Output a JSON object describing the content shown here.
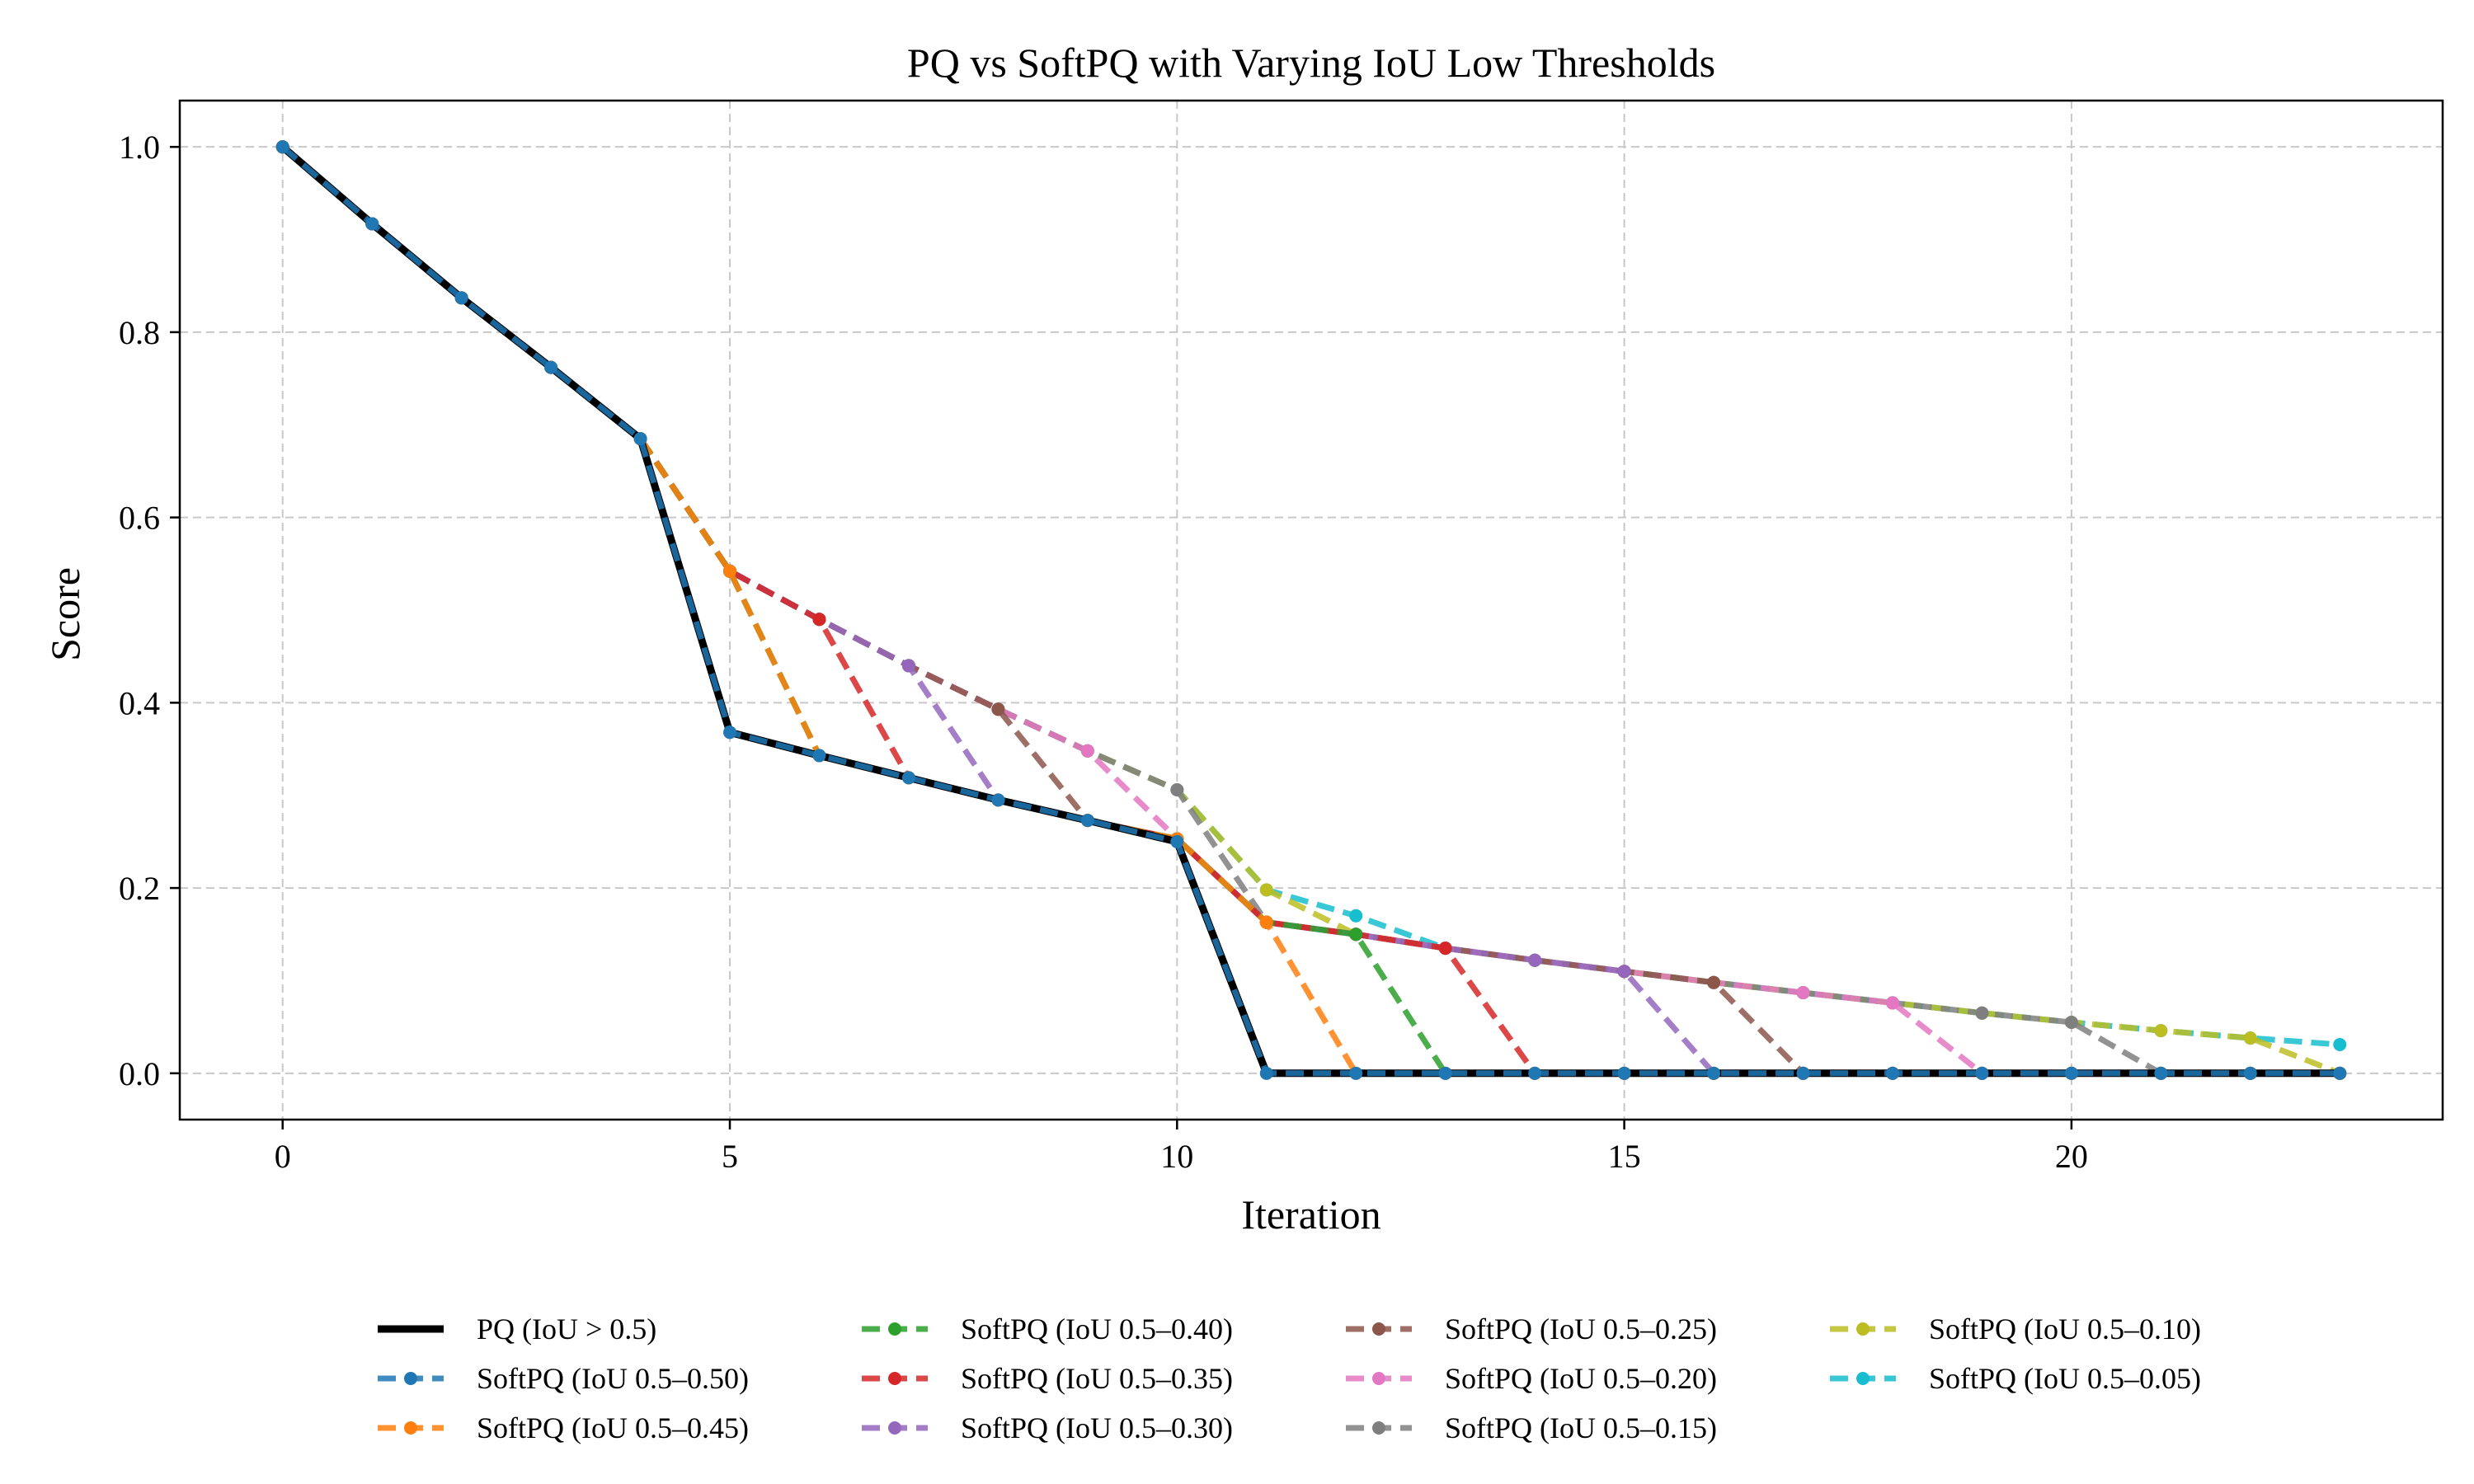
{
  "chart_data": {
    "type": "line",
    "title": "PQ vs SoftPQ with Varying IoU Low Thresholds",
    "xlabel": "Iteration",
    "ylabel": "Score",
    "xlim": [
      -1.15,
      24.15
    ],
    "ylim": [
      -0.05,
      1.05
    ],
    "xticks": [
      0,
      5,
      10,
      15,
      20
    ],
    "yticks": [
      0.0,
      0.2,
      0.4,
      0.6,
      0.8,
      1.0
    ],
    "grid": true,
    "legend_position": "bottom-center",
    "x": [
      0,
      1,
      2,
      3,
      4,
      5,
      6,
      7,
      8,
      9,
      10,
      11,
      12,
      13,
      14,
      15,
      16,
      17,
      18,
      19,
      20,
      21,
      22,
      23
    ],
    "series": [
      {
        "name": "SoftPQ (IoU 0.5–0.05)",
        "color": "#17becf",
        "style": "dashed",
        "marker": true,
        "values": [
          1.0,
          0.917,
          0.837,
          0.762,
          0.685,
          0.542,
          0.49,
          0.44,
          0.393,
          0.348,
          0.306,
          0.198,
          0.17,
          0.135,
          0.122,
          0.11,
          0.098,
          0.087,
          0.076,
          0.065,
          0.055,
          0.046,
          0.038,
          0.031
        ]
      },
      {
        "name": "SoftPQ (IoU 0.5–0.10)",
        "color": "#bcbd22",
        "style": "dashed",
        "marker": true,
        "values": [
          1.0,
          0.917,
          0.837,
          0.762,
          0.685,
          0.542,
          0.49,
          0.44,
          0.393,
          0.348,
          0.306,
          0.198,
          0.15,
          0.135,
          0.122,
          0.11,
          0.098,
          0.087,
          0.076,
          0.065,
          0.055,
          0.046,
          0.038,
          0.0
        ]
      },
      {
        "name": "SoftPQ (IoU 0.5–0.15)",
        "color": "#7f7f7f",
        "style": "dashed",
        "marker": true,
        "values": [
          1.0,
          0.917,
          0.837,
          0.762,
          0.685,
          0.542,
          0.49,
          0.44,
          0.393,
          0.348,
          0.306,
          0.163,
          0.15,
          0.135,
          0.122,
          0.11,
          0.098,
          0.087,
          0.076,
          0.065,
          0.055,
          0.0,
          0.0,
          0.0
        ]
      },
      {
        "name": "SoftPQ (IoU 0.5–0.20)",
        "color": "#e377c2",
        "style": "dashed",
        "marker": true,
        "values": [
          1.0,
          0.917,
          0.837,
          0.762,
          0.685,
          0.542,
          0.49,
          0.44,
          0.393,
          0.348,
          0.253,
          0.163,
          0.15,
          0.135,
          0.122,
          0.11,
          0.098,
          0.087,
          0.076,
          0.0,
          0.0,
          0.0,
          0.0,
          0.0
        ]
      },
      {
        "name": "SoftPQ (IoU 0.5–0.25)",
        "color": "#8c564b",
        "style": "dashed",
        "marker": true,
        "values": [
          1.0,
          0.917,
          0.837,
          0.762,
          0.685,
          0.542,
          0.49,
          0.44,
          0.393,
          0.273,
          0.253,
          0.163,
          0.15,
          0.135,
          0.122,
          0.11,
          0.098,
          0.0,
          0.0,
          0.0,
          0.0,
          0.0,
          0.0,
          0.0
        ]
      },
      {
        "name": "SoftPQ (IoU 0.5–0.30)",
        "color": "#9467bd",
        "style": "dashed",
        "marker": true,
        "values": [
          1.0,
          0.917,
          0.837,
          0.762,
          0.685,
          0.542,
          0.49,
          0.44,
          0.295,
          0.273,
          0.253,
          0.163,
          0.15,
          0.135,
          0.122,
          0.11,
          0.0,
          0.0,
          0.0,
          0.0,
          0.0,
          0.0,
          0.0,
          0.0
        ]
      },
      {
        "name": "SoftPQ (IoU 0.5–0.35)",
        "color": "#d62728",
        "style": "dashed",
        "marker": true,
        "values": [
          1.0,
          0.917,
          0.837,
          0.762,
          0.685,
          0.542,
          0.49,
          0.319,
          0.295,
          0.273,
          0.253,
          0.163,
          0.15,
          0.135,
          0.0,
          0.0,
          0.0,
          0.0,
          0.0,
          0.0,
          0.0,
          0.0,
          0.0,
          0.0
        ]
      },
      {
        "name": "SoftPQ (IoU 0.5–0.40)",
        "color": "#2ca02c",
        "style": "dashed",
        "marker": true,
        "values": [
          1.0,
          0.917,
          0.837,
          0.762,
          0.685,
          0.542,
          0.343,
          0.319,
          0.295,
          0.273,
          0.253,
          0.163,
          0.15,
          0.0,
          0.0,
          0.0,
          0.0,
          0.0,
          0.0,
          0.0,
          0.0,
          0.0,
          0.0,
          0.0
        ]
      },
      {
        "name": "SoftPQ (IoU 0.5–0.45)",
        "color": "#ff7f0e",
        "style": "dashed",
        "marker": true,
        "values": [
          1.0,
          0.917,
          0.837,
          0.762,
          0.685,
          0.542,
          0.343,
          0.319,
          0.295,
          0.273,
          0.253,
          0.163,
          0.0,
          0.0,
          0.0,
          0.0,
          0.0,
          0.0,
          0.0,
          0.0,
          0.0,
          0.0,
          0.0,
          0.0
        ]
      },
      {
        "name": "PQ (IoU > 0.5)",
        "color": "#000000",
        "style": "solid",
        "marker": false,
        "values": [
          1.0,
          0.917,
          0.837,
          0.762,
          0.685,
          0.368,
          0.343,
          0.319,
          0.295,
          0.273,
          0.25,
          0.0,
          0.0,
          0.0,
          0.0,
          0.0,
          0.0,
          0.0,
          0.0,
          0.0,
          0.0,
          0.0,
          0.0,
          0.0
        ]
      },
      {
        "name": "SoftPQ (IoU 0.5–0.50)",
        "color": "#1f77b4",
        "style": "dashed",
        "marker": true,
        "values": [
          1.0,
          0.917,
          0.837,
          0.762,
          0.685,
          0.368,
          0.343,
          0.319,
          0.295,
          0.273,
          0.25,
          0.0,
          0.0,
          0.0,
          0.0,
          0.0,
          0.0,
          0.0,
          0.0,
          0.0,
          0.0,
          0.0,
          0.0,
          0.0
        ]
      }
    ],
    "legend_order": [
      "PQ (IoU > 0.5)",
      "SoftPQ (IoU 0.5–0.50)",
      "SoftPQ (IoU 0.5–0.45)",
      "SoftPQ (IoU 0.5–0.40)",
      "SoftPQ (IoU 0.5–0.35)",
      "SoftPQ (IoU 0.5–0.30)",
      "SoftPQ (IoU 0.5–0.25)",
      "SoftPQ (IoU 0.5–0.20)",
      "SoftPQ (IoU 0.5–0.15)",
      "SoftPQ (IoU 0.5–0.10)",
      "SoftPQ (IoU 0.5–0.05)"
    ]
  }
}
